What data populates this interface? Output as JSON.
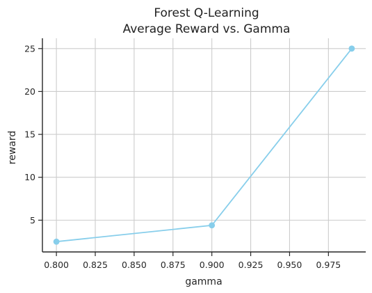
{
  "chart_data": {
    "type": "line",
    "title": "Forest Q-Learning\nAverage Reward vs. Gamma",
    "title_lines": [
      "Forest Q-Learning",
      "Average Reward vs. Gamma"
    ],
    "xlabel": "gamma",
    "ylabel": "reward",
    "x": [
      0.8,
      0.9,
      0.99
    ],
    "series": [
      {
        "values": [
          2.5,
          4.4,
          25.0
        ],
        "color": "#87ceeb",
        "marker": "circle"
      }
    ],
    "xlim": [
      0.791,
      0.999
    ],
    "ylim": [
      1.3,
      26.2
    ],
    "xticks": [
      0.8,
      0.825,
      0.85,
      0.875,
      0.9,
      0.925,
      0.95,
      0.975
    ],
    "xtick_labels": [
      "0.800",
      "0.825",
      "0.850",
      "0.875",
      "0.900",
      "0.925",
      "0.950",
      "0.975"
    ],
    "yticks": [
      5,
      10,
      15,
      20,
      25
    ],
    "ytick_labels": [
      "5",
      "10",
      "15",
      "20",
      "25"
    ],
    "grid": true,
    "legend": "none"
  }
}
